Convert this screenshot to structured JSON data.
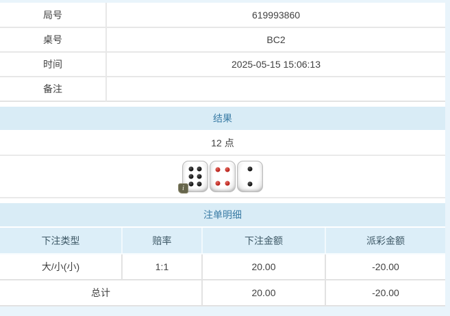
{
  "theme": {
    "page_edge_bg": "#e9f4fb",
    "section_header_bg": "#d9ecf6",
    "section_header_text": "#3a7ca5",
    "column_header_bg": "#dceef8",
    "negative_text": "#e21b1b",
    "body_text": "#3f3f3f"
  },
  "info_table": {
    "rows": [
      {
        "label": "局号",
        "value": "619993860"
      },
      {
        "label": "桌号",
        "value": "BC2"
      },
      {
        "label": "时间",
        "value": "2025-05-15 15:06:13"
      },
      {
        "label": "备注",
        "value": ""
      }
    ]
  },
  "result_section": {
    "title": "结果",
    "points": "12 点",
    "dice": [
      {
        "value": 6,
        "pip_color": "black"
      },
      {
        "value": 4,
        "pip_color": "red"
      },
      {
        "value": 2,
        "pip_color": "black"
      }
    ],
    "info_badge": "i"
  },
  "bet_section": {
    "title": "注单明细",
    "columns": [
      "下注类型",
      "赔率",
      "下注金额",
      "派彩金额"
    ],
    "rows": [
      {
        "bet_type": "大/小(小)",
        "odds": "1:1",
        "bet_amount": "20.00",
        "payout_amount": "-20.00"
      }
    ],
    "total": {
      "label": "总计",
      "bet_amount": "20.00",
      "payout_amount": "-20.00"
    }
  }
}
